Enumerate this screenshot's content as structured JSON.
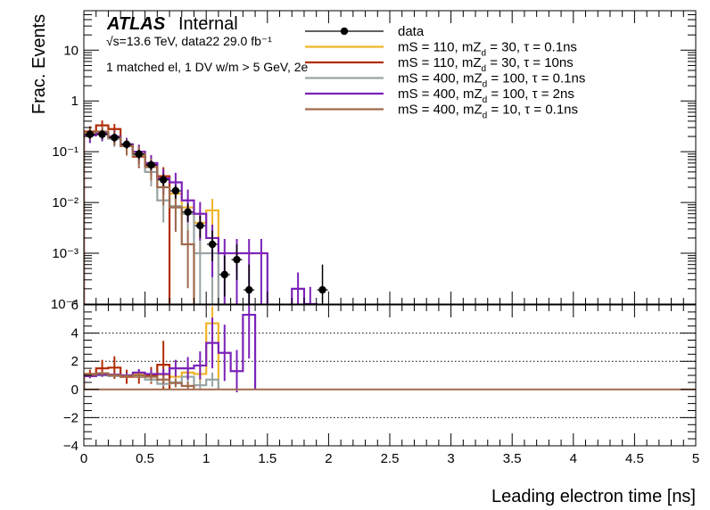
{
  "chart_data": [
    {
      "panel": "main",
      "type": "line",
      "drawstyle": "steps",
      "title": "",
      "ylabel": "Frac. Events",
      "yscale": "log",
      "ylim": [
        0.0001,
        60
      ],
      "xlim": [
        0,
        5
      ],
      "ytick_labels": {
        "1e-4": "10⁻⁴",
        "1e-3": "10⁻³",
        "1e-2": "10⁻²",
        "1e-1": "10⁻¹",
        "1": "1",
        "10": "10"
      },
      "atlas_label": "ATLAS",
      "atlas_status": "Internal",
      "energy_lumi_text": "√s=13.6 TeV, data22 29.0 fb⁻¹",
      "selection_text": "1 matched el, 1 DV w/m > 5 GeV, 2e",
      "legend_position": "top-right",
      "data": {
        "name": "data",
        "color": "#000000",
        "points": [
          {
            "x": 0.05,
            "y": 0.22,
            "lo": 0.18,
            "hi": 0.27
          },
          {
            "x": 0.15,
            "y": 0.22,
            "lo": 0.18,
            "hi": 0.27
          },
          {
            "x": 0.25,
            "y": 0.19,
            "lo": 0.155,
            "hi": 0.23
          },
          {
            "x": 0.35,
            "y": 0.14,
            "lo": 0.115,
            "hi": 0.17
          },
          {
            "x": 0.45,
            "y": 0.09,
            "lo": 0.072,
            "hi": 0.11
          },
          {
            "x": 0.55,
            "y": 0.055,
            "lo": 0.043,
            "hi": 0.068
          },
          {
            "x": 0.65,
            "y": 0.028,
            "lo": 0.021,
            "hi": 0.036
          },
          {
            "x": 0.75,
            "y": 0.017,
            "lo": 0.012,
            "hi": 0.022
          },
          {
            "x": 0.85,
            "y": 0.0065,
            "lo": 0.0042,
            "hi": 0.0095
          },
          {
            "x": 0.95,
            "y": 0.0035,
            "lo": 0.002,
            "hi": 0.0055
          },
          {
            "x": 1.05,
            "y": 0.0015,
            "lo": 0.0007,
            "hi": 0.0028
          },
          {
            "x": 1.15,
            "y": 0.00038,
            "lo": 0.00014,
            "hi": 0.0009
          },
          {
            "x": 1.25,
            "y": 0.00075,
            "lo": 0.0003,
            "hi": 0.0015
          },
          {
            "x": 1.35,
            "y": 0.00019,
            "lo": 5e-05,
            "hi": 0.0006
          },
          {
            "x": 1.95,
            "y": 0.00019,
            "lo": 5e-05,
            "hi": 0.0006
          }
        ]
      },
      "series": [
        {
          "name": "mS = 110, mZ_d = 30, τ = 0.1ns",
          "label_main": "mS = 110, mZ",
          "label_sub": "d",
          "label_rest": " = 30, τ = 0.1ns",
          "color": "#f0b429",
          "bins": [
            0.0,
            0.1,
            0.2,
            0.3,
            0.4,
            0.5,
            0.6,
            0.7,
            0.8,
            0.9,
            1.0,
            1.1
          ],
          "values": [
            0.22,
            0.24,
            0.2,
            0.13,
            0.1,
            0.05,
            0.03,
            0.015,
            0.008,
            0.004,
            0.007
          ]
        },
        {
          "name": "mS = 110, mZ_d = 30, τ = 10ns",
          "label_main": "mS = 110, mZ",
          "label_sub": "d",
          "label_rest": " = 30, τ = 10ns",
          "color": "#b22d04",
          "bins": [
            0.0,
            0.1,
            0.2,
            0.3,
            0.4,
            0.5,
            0.6,
            0.7
          ],
          "values": [
            0.25,
            0.33,
            0.28,
            0.13,
            0.08,
            0.055,
            0.033
          ]
        },
        {
          "name": "mS = 400, mZ_d = 100, τ = 0.1ns",
          "label_main": "mS = 400, mZ",
          "label_sub": "d",
          "label_rest": " = 100, τ = 0.1ns",
          "color": "#98a4a4",
          "bins": [
            0.0,
            0.1,
            0.2,
            0.3,
            0.4,
            0.5,
            0.6,
            0.7,
            0.8,
            0.9,
            1.0,
            1.1
          ],
          "values": [
            0.21,
            0.22,
            0.18,
            0.14,
            0.085,
            0.04,
            0.011,
            0.0085,
            0.006,
            0.001,
            0.001
          ]
        },
        {
          "name": "mS = 400, mZ_d = 100, τ = 2ns",
          "label_main": "mS = 400, mZ",
          "label_sub": "d",
          "label_rest": " = 100, τ = 2ns",
          "color": "#7b22b8",
          "bins": [
            0.0,
            0.1,
            0.2,
            0.3,
            0.4,
            0.5,
            0.6,
            0.7,
            0.8,
            0.9,
            1.0,
            1.1,
            1.2,
            1.3,
            1.4,
            1.5,
            1.6,
            1.7,
            1.8,
            1.9
          ],
          "values": [
            0.21,
            0.23,
            0.2,
            0.14,
            0.1,
            0.06,
            0.03,
            0.025,
            0.011,
            0.006,
            0.002,
            0.001,
            0.001,
            0.001,
            0.001,
            1e-05,
            1e-05,
            0.0002,
            0.0001
          ]
        },
        {
          "name": "mS = 400, mZ_d = 10, τ = 0.1ns",
          "label_main": "mS = 400, mZ",
          "label_sub": "d",
          "label_rest": " = 10, τ = 0.1ns",
          "color": "#a06a4c",
          "bins": [
            0.0,
            0.1,
            0.2,
            0.3,
            0.4,
            0.5,
            0.6,
            0.7,
            0.8,
            0.9
          ],
          "values": [
            0.24,
            0.25,
            0.19,
            0.13,
            0.09,
            0.05,
            0.02,
            0.008,
            0.0015
          ]
        }
      ]
    },
    {
      "panel": "ratio",
      "type": "line",
      "drawstyle": "steps",
      "xlabel": "Leading electron time [ns]",
      "ylabel": "",
      "xlim": [
        0,
        5
      ],
      "ylim": [
        -4,
        6
      ],
      "yticks": [
        -4,
        -2,
        0,
        2,
        4,
        6
      ],
      "xticks": [
        0,
        0.5,
        1,
        1.5,
        2,
        2.5,
        3,
        3.5,
        4,
        4.5,
        5
      ],
      "xtick_labels": [
        "0",
        "0.5",
        "1",
        "1.5",
        "2",
        "2.5",
        "3",
        "3.5",
        "4",
        "4.5",
        "5"
      ],
      "ytick_labels": [
        "−4",
        "−2",
        "0",
        "2",
        "4",
        "6"
      ],
      "dotted_gridlines_y": [
        -2,
        2,
        4
      ],
      "reference_line_y": 0,
      "series": [
        {
          "name": "mS = 110, mZ_d = 30, τ = 0.1ns",
          "color": "#f0b429",
          "bins": [
            0.0,
            0.1,
            0.2,
            0.3,
            0.4,
            0.5,
            0.6,
            0.7,
            0.8,
            0.9,
            1.0,
            1.1
          ],
          "values": [
            1.0,
            1.1,
            1.05,
            0.9,
            1.1,
            0.9,
            1.05,
            0.9,
            1.2,
            1.1,
            4.7
          ],
          "err": [
            0.15,
            0.15,
            0.15,
            0.15,
            0.2,
            0.25,
            0.3,
            0.35,
            0.5,
            0.6,
            1.2
          ]
        },
        {
          "name": "mS = 110, mZ_d = 30, τ = 10ns",
          "color": "#b22d04",
          "bins": [
            0.0,
            0.1,
            0.2,
            0.3,
            0.4,
            0.5,
            0.6,
            0.7
          ],
          "values": [
            1.1,
            1.5,
            1.55,
            0.9,
            0.9,
            1.0,
            1.75
          ],
          "err": [
            0.3,
            0.6,
            0.8,
            0.5,
            0.5,
            0.6,
            1.7
          ]
        },
        {
          "name": "mS = 400, mZ_d = 100, τ = 0.1ns",
          "color": "#98a4a4",
          "bins": [
            0.0,
            0.1,
            0.2,
            0.3,
            0.4,
            0.5,
            0.6,
            0.7,
            0.8,
            0.9,
            1.0,
            1.1
          ],
          "values": [
            0.95,
            1.0,
            0.95,
            1.0,
            0.95,
            0.7,
            0.4,
            0.5,
            0.9,
            0.3,
            0.7
          ],
          "err": [
            0.1,
            0.1,
            0.1,
            0.15,
            0.15,
            0.2,
            0.2,
            0.3,
            0.5,
            0.3,
            0.5
          ]
        },
        {
          "name": "mS = 400, mZ_d = 100, τ = 2ns",
          "color": "#7b22b8",
          "bins": [
            0.0,
            0.1,
            0.2,
            0.3,
            0.4,
            0.5,
            0.6,
            0.7,
            0.8,
            0.9,
            1.0,
            1.1,
            1.2,
            1.3,
            1.4
          ],
          "values": [
            0.95,
            1.05,
            1.05,
            1.0,
            1.2,
            1.1,
            1.1,
            1.5,
            1.5,
            1.7,
            3.3,
            2.6,
            1.3,
            5.3
          ],
          "err": [
            0.15,
            0.15,
            0.15,
            0.2,
            0.25,
            0.3,
            0.35,
            0.6,
            0.8,
            1.0,
            1.8,
            2.0,
            1.5,
            3.1
          ]
        },
        {
          "name": "mS = 400, mZ_d = 10, τ = 0.1ns",
          "color": "#a06a4c",
          "bins": [
            0.0,
            0.1,
            0.2,
            0.3,
            0.4,
            0.5,
            0.6,
            0.7,
            0.8,
            0.9
          ],
          "values": [
            1.05,
            1.15,
            1.0,
            0.95,
            1.0,
            0.9,
            0.7,
            0.45,
            0.25
          ],
          "err": [
            0.15,
            0.15,
            0.15,
            0.15,
            0.2,
            0.25,
            0.3,
            0.3,
            0.3
          ]
        }
      ]
    }
  ]
}
